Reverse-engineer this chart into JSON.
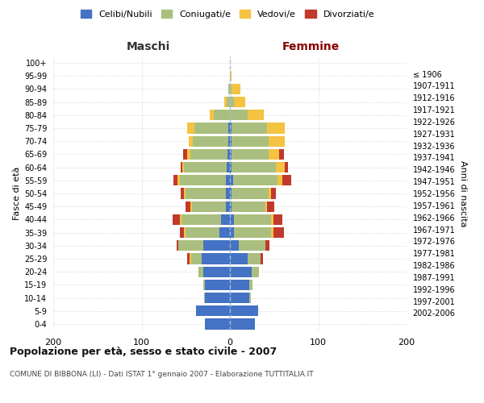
{
  "age_groups": [
    "0-4",
    "5-9",
    "10-14",
    "15-19",
    "20-24",
    "25-29",
    "30-34",
    "35-39",
    "40-44",
    "45-49",
    "50-54",
    "55-59",
    "60-64",
    "65-69",
    "70-74",
    "75-79",
    "80-84",
    "85-89",
    "90-94",
    "95-99",
    "100+"
  ],
  "birth_years": [
    "2002-2006",
    "1997-2001",
    "1992-1996",
    "1987-1991",
    "1982-1986",
    "1977-1981",
    "1972-1976",
    "1967-1971",
    "1962-1966",
    "1957-1961",
    "1952-1956",
    "1947-1951",
    "1942-1946",
    "1937-1941",
    "1932-1936",
    "1927-1931",
    "1922-1926",
    "1917-1921",
    "1912-1916",
    "1907-1911",
    "≤ 1906"
  ],
  "male": {
    "celibi": [
      28,
      38,
      28,
      28,
      30,
      32,
      30,
      12,
      10,
      5,
      5,
      5,
      4,
      3,
      2,
      2,
      0,
      0,
      0,
      0,
      0
    ],
    "coniugati": [
      0,
      0,
      1,
      2,
      6,
      12,
      28,
      38,
      45,
      38,
      45,
      52,
      48,
      42,
      40,
      38,
      18,
      4,
      2,
      0,
      0
    ],
    "vedovi": [
      0,
      0,
      0,
      0,
      0,
      2,
      0,
      2,
      2,
      2,
      2,
      2,
      2,
      3,
      5,
      8,
      5,
      2,
      0,
      0,
      0
    ],
    "divorziati": [
      0,
      0,
      0,
      0,
      0,
      2,
      2,
      5,
      8,
      5,
      4,
      5,
      2,
      5,
      0,
      0,
      0,
      0,
      0,
      0,
      0
    ]
  },
  "female": {
    "nubili": [
      28,
      32,
      22,
      22,
      25,
      20,
      10,
      5,
      5,
      2,
      2,
      4,
      2,
      2,
      2,
      2,
      0,
      0,
      0,
      0,
      0
    ],
    "coniugate": [
      0,
      0,
      2,
      4,
      8,
      15,
      30,
      42,
      42,
      38,
      42,
      50,
      50,
      42,
      42,
      40,
      20,
      5,
      2,
      0,
      0
    ],
    "vedove": [
      0,
      0,
      0,
      0,
      0,
      0,
      0,
      2,
      2,
      2,
      3,
      5,
      10,
      12,
      18,
      20,
      18,
      12,
      10,
      2,
      0
    ],
    "divorziate": [
      0,
      0,
      0,
      0,
      0,
      2,
      5,
      12,
      10,
      8,
      5,
      10,
      4,
      5,
      0,
      0,
      0,
      0,
      0,
      0,
      0
    ]
  },
  "colors": {
    "celibi": "#4472C4",
    "coniugati": "#AABF7F",
    "vedovi": "#F5C342",
    "divorziati": "#C0392B"
  },
  "legend_labels": [
    "Celibi/Nubili",
    "Coniugati/e",
    "Vedovi/e",
    "Divorziati/e"
  ],
  "title": "Popolazione per età, sesso e stato civile - 2007",
  "subtitle": "COMUNE DI BIBBONA (LI) - Dati ISTAT 1° gennaio 2007 - Elaborazione TUTTITALIA.IT",
  "label_maschi": "Maschi",
  "label_femmine": "Femmine",
  "ylabel_left": "Fasce di età",
  "ylabel_right": "Anni di nascita",
  "xlim": 200,
  "background_color": "#ffffff",
  "grid_color": "#cccccc",
  "center_line_color": "#aabbcc",
  "maschi_color": "#333333",
  "femmine_color": "#8B0000"
}
